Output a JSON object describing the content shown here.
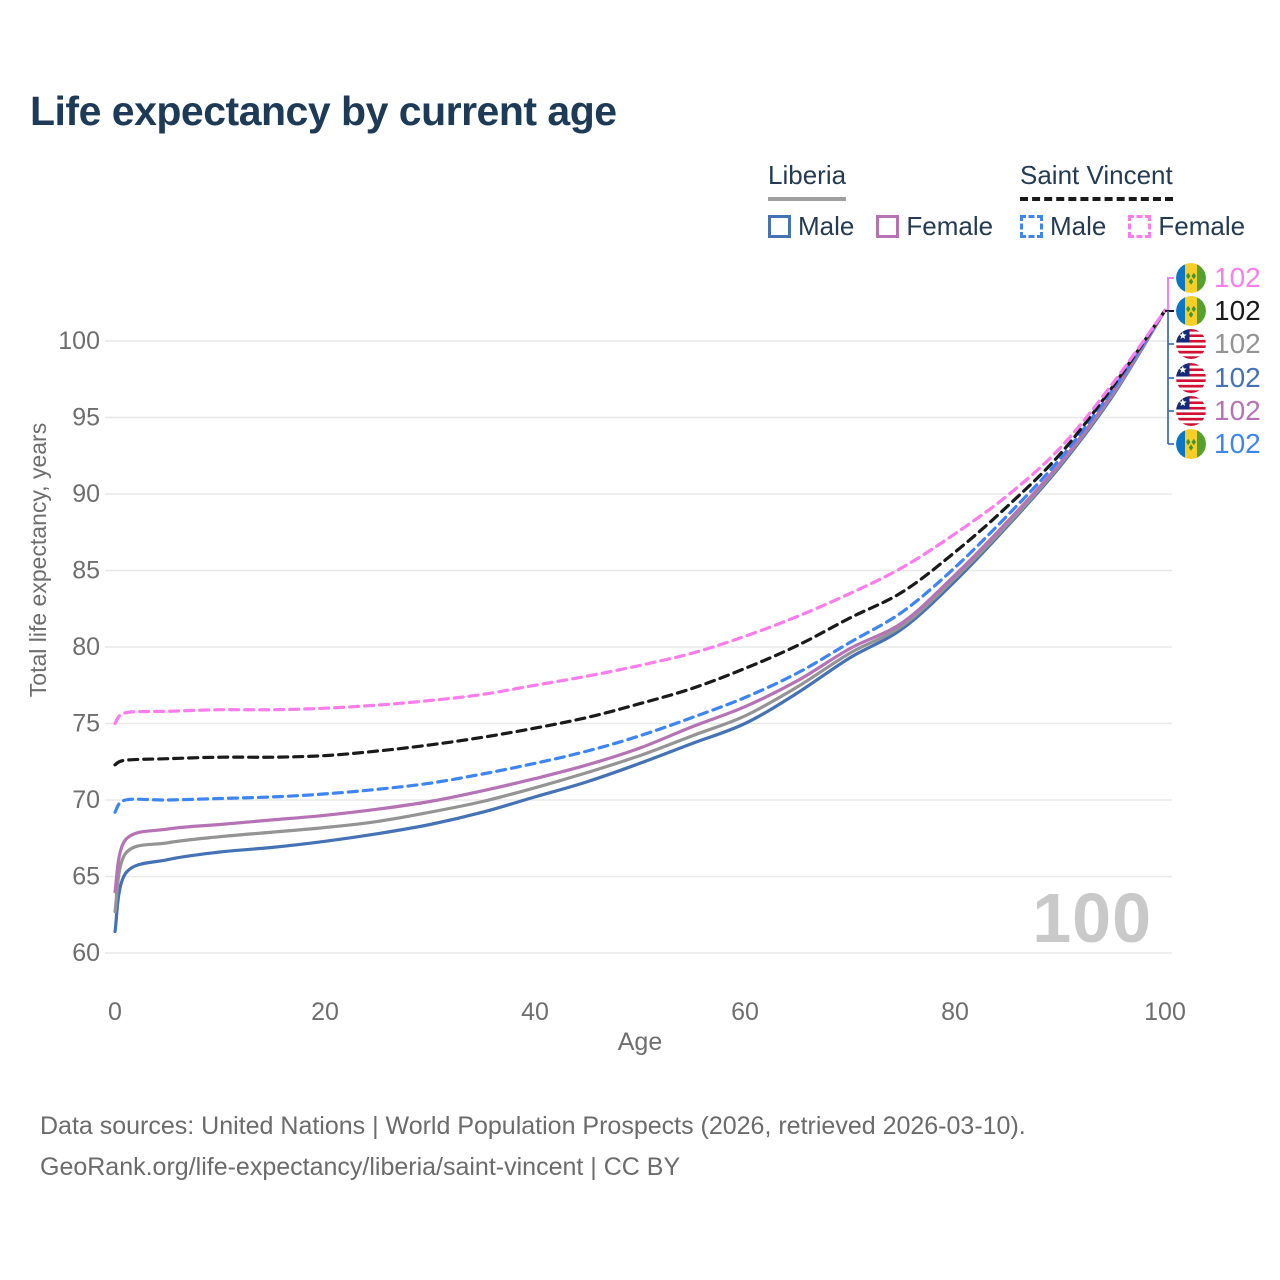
{
  "page": {
    "title": "Life expectancy by current age"
  },
  "legend": {
    "groups": [
      {
        "label": "Liberia",
        "style": "solid",
        "underline_color": "#9e9e9e",
        "items": [
          {
            "label": "Male",
            "color": "#4472b5"
          },
          {
            "label": "Female",
            "color": "#b573b5"
          }
        ]
      },
      {
        "label": "Saint Vincent",
        "style": "dashed",
        "underline_color": "#1a1a1a",
        "items": [
          {
            "label": "Male",
            "color": "#3d85f2"
          },
          {
            "label": "Female",
            "color": "#fb7ced"
          }
        ]
      }
    ]
  },
  "chart_data": {
    "type": "line",
    "title": "Life expectancy by current age",
    "xlabel": "Age",
    "ylabel": "Total life expectancy, years",
    "x_ticks": [
      0,
      20,
      40,
      60,
      80,
      100
    ],
    "y_ticks": [
      60,
      65,
      70,
      75,
      80,
      85,
      90,
      95,
      100
    ],
    "xlim": [
      0,
      100
    ],
    "ylim": [
      60,
      102.5
    ],
    "grid": "horizontal",
    "ages": [
      0,
      1,
      5,
      10,
      15,
      20,
      25,
      30,
      35,
      40,
      45,
      50,
      55,
      60,
      65,
      70,
      75,
      80,
      85,
      90,
      95,
      100
    ],
    "series": [
      {
        "name": "Saint Vincent Female",
        "country": "saint-vincent",
        "color": "#fb7ced",
        "dash": true,
        "values": [
          75.0,
          75.7,
          75.8,
          75.9,
          75.9,
          76.0,
          76.2,
          76.5,
          76.9,
          77.5,
          78.1,
          78.8,
          79.6,
          80.7,
          82.0,
          83.5,
          85.2,
          87.4,
          89.9,
          93.0,
          97.2,
          102
        ]
      },
      {
        "name": "Saint Vincent Both sexes",
        "country": "saint-vincent",
        "color": "#1a1a1a",
        "dash": true,
        "values": [
          72.3,
          72.6,
          72.7,
          72.8,
          72.8,
          72.9,
          73.2,
          73.6,
          74.1,
          74.7,
          75.4,
          76.3,
          77.3,
          78.6,
          80.1,
          81.9,
          83.6,
          86.2,
          89.2,
          92.6,
          97.0,
          102
        ]
      },
      {
        "name": "Saint Vincent Male",
        "country": "saint-vincent",
        "color": "#3d85f2",
        "dash": true,
        "values": [
          69.2,
          70.0,
          70.0,
          70.1,
          70.2,
          70.4,
          70.7,
          71.1,
          71.7,
          72.4,
          73.2,
          74.2,
          75.4,
          76.7,
          78.3,
          80.3,
          82.3,
          85.2,
          88.6,
          92.3,
          96.8,
          102
        ]
      },
      {
        "name": "Liberia Female",
        "country": "liberia",
        "color": "#b573b5",
        "dash": false,
        "values": [
          64.0,
          67.4,
          68.1,
          68.4,
          68.7,
          69.0,
          69.4,
          69.9,
          70.6,
          71.4,
          72.3,
          73.4,
          74.8,
          76.1,
          77.8,
          79.9,
          81.6,
          84.7,
          88.2,
          92.0,
          96.6,
          102
        ]
      },
      {
        "name": "Liberia Both sexes",
        "country": "liberia",
        "color": "#949494",
        "dash": false,
        "values": [
          62.7,
          66.5,
          67.2,
          67.6,
          67.9,
          68.2,
          68.6,
          69.2,
          69.9,
          70.8,
          71.8,
          72.9,
          74.2,
          75.5,
          77.4,
          79.6,
          81.4,
          84.5,
          88.0,
          91.9,
          96.5,
          102
        ]
      },
      {
        "name": "Liberia Male",
        "country": "liberia",
        "color": "#4472b5",
        "dash": false,
        "values": [
          61.4,
          65.2,
          66.1,
          66.6,
          66.9,
          67.3,
          67.8,
          68.4,
          69.2,
          70.2,
          71.2,
          72.4,
          73.7,
          75.0,
          77.0,
          79.3,
          81.2,
          84.3,
          87.9,
          91.8,
          96.4,
          102
        ]
      }
    ],
    "end_labels": [
      {
        "flag": "saint-vincent",
        "value": "102",
        "color": "#fb7ced"
      },
      {
        "flag": "saint-vincent",
        "value": "102",
        "color": "#1a1a1a"
      },
      {
        "flag": "liberia",
        "value": "102",
        "color": "#949494"
      },
      {
        "flag": "liberia",
        "value": "102",
        "color": "#4472b5"
      },
      {
        "flag": "liberia",
        "value": "102",
        "color": "#b573b5"
      },
      {
        "flag": "saint-vincent",
        "value": "102",
        "color": "#3d85f2"
      }
    ],
    "legend_position": "top-right",
    "watermark": "100"
  },
  "footer": {
    "line1": "Data sources: United Nations | World Population Prospects (2026, retrieved 2026-03-10).",
    "line2": "GeoRank.org/life-expectancy/liberia/saint-vincent | CC BY"
  }
}
